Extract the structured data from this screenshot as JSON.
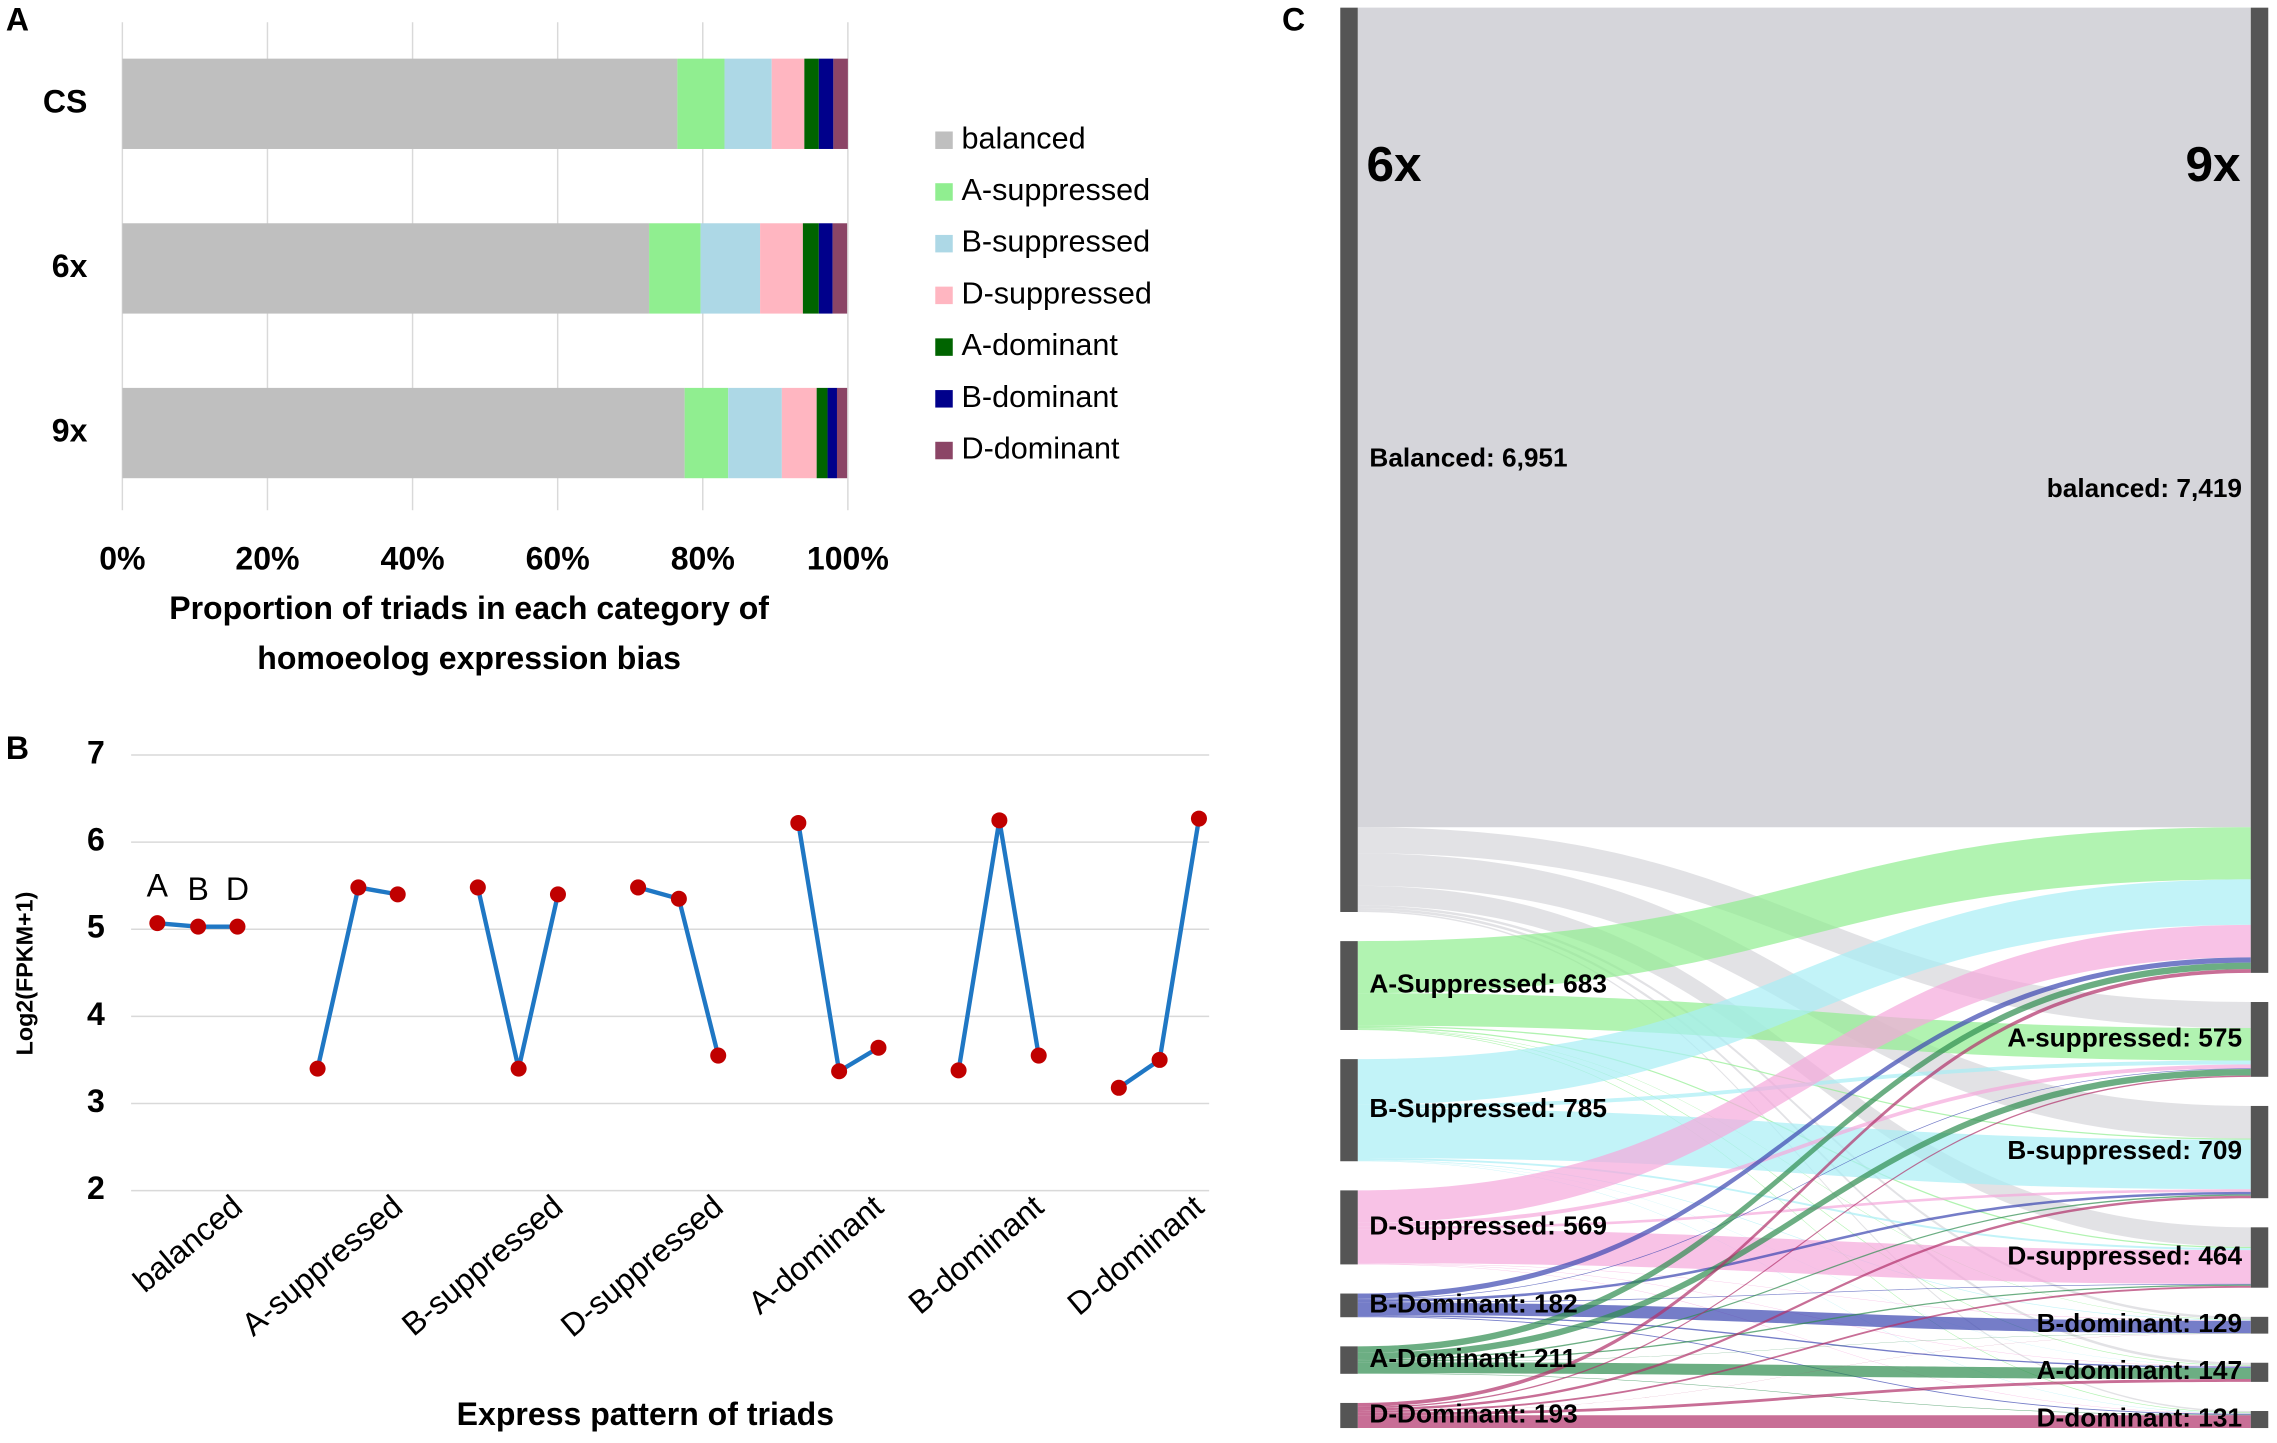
{
  "chart_data": [
    {
      "type": "stacked-bar-horizontal",
      "panel": "A",
      "categories": [
        "CS",
        "6x",
        "9x"
      ],
      "series": [
        {
          "name": "balanced",
          "color": "#bfbfbf",
          "values": [
            76.5,
            72.6,
            77.5
          ]
        },
        {
          "name": "A-suppressed",
          "color": "#90ee90",
          "values": [
            6.5,
            7.1,
            6.0
          ]
        },
        {
          "name": "B-suppressed",
          "color": "#add8e6",
          "values": [
            6.5,
            8.2,
            7.4
          ]
        },
        {
          "name": "D-suppressed",
          "color": "#ffb6c1",
          "values": [
            4.5,
            5.9,
            4.8
          ]
        },
        {
          "name": "A-dominant",
          "color": "#006400",
          "values": [
            2.0,
            2.2,
            1.5
          ]
        },
        {
          "name": "B-dominant",
          "color": "#00008b",
          "values": [
            2.0,
            1.9,
            1.3
          ]
        },
        {
          "name": "D-dominant",
          "color": "#8b4566",
          "values": [
            2.0,
            2.0,
            1.4
          ]
        }
      ],
      "xlim": [
        0,
        100
      ],
      "xticks": [
        {
          "value": 0,
          "label": "0%"
        },
        {
          "value": 20,
          "label": "20%"
        },
        {
          "value": 40,
          "label": "40%"
        },
        {
          "value": 60,
          "label": "60%"
        },
        {
          "value": 80,
          "label": "80%"
        },
        {
          "value": 100,
          "label": "100%"
        }
      ],
      "xlabel": [
        "Proportion of triads in each category of",
        "homoeolog expression bias"
      ],
      "grid": true,
      "legend": "right"
    },
    {
      "type": "grouped-line",
      "panel": "B",
      "categories": [
        "balanced",
        "A-suppressed",
        "B-suppressed",
        "D-suppressed",
        "A-dominant",
        "B-dominant",
        "D-dominant"
      ],
      "values": [
        [
          5.07,
          5.03,
          5.03
        ],
        [
          3.4,
          5.48,
          5.4
        ],
        [
          5.48,
          3.4,
          5.4
        ],
        [
          5.48,
          5.35,
          3.55
        ],
        [
          6.22,
          3.37,
          3.64
        ],
        [
          3.38,
          6.25,
          3.55
        ],
        [
          3.18,
          3.5,
          6.27
        ]
      ],
      "annotations": [
        "A",
        "B",
        "D"
      ],
      "line_color": "#1f77c4",
      "point_color": "#c00000",
      "ylim": [
        2,
        7
      ],
      "yticks": [
        2,
        3,
        4,
        5,
        6,
        7
      ],
      "ylabel": "Log2(FPKM+1)",
      "xlabel": "Express pattern of triads",
      "grid": true
    },
    {
      "type": "sankey",
      "panel": "C",
      "left_title": "6x",
      "right_title": "9x",
      "left_nodes": [
        {
          "label": "Balanced: 6,951",
          "value": 6951
        },
        {
          "label": "A-Suppressed: 683",
          "value": 683
        },
        {
          "label": "B-Suppressed: 785",
          "value": 785
        },
        {
          "label": "D-Suppressed: 569",
          "value": 569
        },
        {
          "label": "B-Dominant: 182",
          "value": 182
        },
        {
          "label": "A-Dominant: 211",
          "value": 211
        },
        {
          "label": "D-Dominant: 193",
          "value": 193
        }
      ],
      "right_nodes": [
        {
          "label": "balanced: 7,419",
          "value": 7419
        },
        {
          "label": "A-suppressed: 575",
          "value": 575
        },
        {
          "label": "B-suppressed: 709",
          "value": 709
        },
        {
          "label": "D-suppressed: 464",
          "value": 464
        },
        {
          "label": "B-dominant: 129",
          "value": 129
        },
        {
          "label": "A-dominant: 147",
          "value": 147
        },
        {
          "label": "D-dominant: 131",
          "value": 131
        }
      ],
      "flows": [
        [
          6300,
          200,
          250,
          150,
          20,
          20,
          11
        ],
        [
          400,
          250,
          10,
          10,
          3,
          5,
          5
        ],
        [
          350,
          30,
          380,
          15,
          5,
          2,
          3
        ],
        [
          250,
          30,
          20,
          260,
          3,
          3,
          3
        ],
        [
          40,
          5,
          20,
          5,
          95,
          10,
          7
        ],
        [
          50,
          50,
          10,
          10,
          2,
          85,
          4
        ],
        [
          29,
          10,
          19,
          14,
          1,
          22,
          98
        ]
      ],
      "link_colors": [
        "#d5d5da",
        "#90ee90",
        "#a8eef5",
        "#f5a8dc",
        "#3a46b0",
        "#2e8b4e",
        "#b0306a"
      ],
      "node_color": "#555555"
    }
  ]
}
